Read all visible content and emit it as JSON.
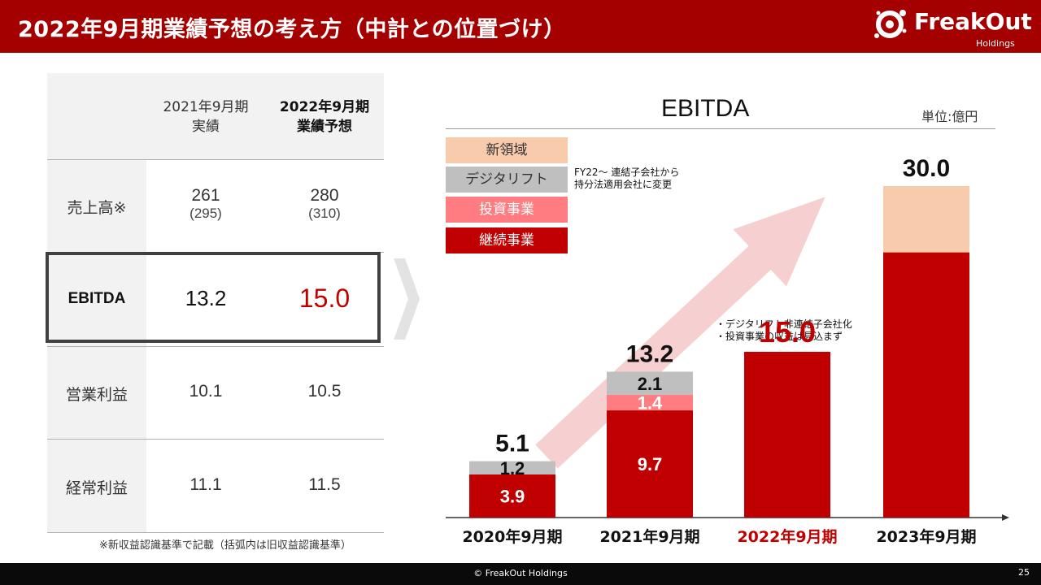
{
  "header": {
    "title": "2022年9月期業績予想の考え方（中計との位置づけ）",
    "logo_name": "FreakOut",
    "logo_sub": "Holdings"
  },
  "table": {
    "columns": [
      {
        "line1": "2021年9月期",
        "line2": "実績"
      },
      {
        "line1": "2022年9月期",
        "line2": "業績予想"
      }
    ],
    "rows": [
      {
        "label": "売上高※",
        "values": [
          "261",
          "280"
        ],
        "sub_values": [
          "(295)",
          "(310)"
        ]
      },
      {
        "label": "EBITDA",
        "values": [
          "13.2",
          "15.0"
        ]
      },
      {
        "label": "営業利益",
        "values": [
          "10.1",
          "10.5"
        ]
      },
      {
        "label": "経常利益",
        "values": [
          "11.1",
          "11.5"
        ]
      }
    ],
    "footnote": "※新収益認識基準で記載（括弧内は旧収益認識基準）"
  },
  "chart_data": {
    "type": "bar",
    "stacked": true,
    "title": "EBITDA",
    "unit": "単位:億円",
    "categories": [
      "2020年9月期",
      "2021年9月期",
      "2022年9月期",
      "2023年9月期"
    ],
    "series": [
      {
        "name": "継続事業",
        "color": "#c00000",
        "values": [
          3.9,
          9.7,
          15.0,
          24.0
        ]
      },
      {
        "name": "投資事業",
        "color": "#ff7c80",
        "values": [
          0,
          1.4,
          0,
          0
        ]
      },
      {
        "name": "デジタリフト",
        "color": "#bfbfbf",
        "values": [
          1.2,
          2.1,
          0,
          0
        ]
      },
      {
        "name": "新領域",
        "color": "#f8cbad",
        "values": [
          0,
          0,
          0,
          6.0
        ]
      }
    ],
    "segment_labels": [
      {
        "cat": 0,
        "series": 0,
        "text": "3.9"
      },
      {
        "cat": 0,
        "series": 2,
        "text": "1.2"
      },
      {
        "cat": 1,
        "series": 0,
        "text": "9.7"
      },
      {
        "cat": 1,
        "series": 1,
        "text": "1.4"
      },
      {
        "cat": 1,
        "series": 2,
        "text": "2.1"
      }
    ],
    "totals": [
      "5.1",
      "13.2",
      "15.0",
      "30.0"
    ],
    "highlight_category": 2,
    "highlight_color": "#c00000",
    "legend_note": [
      "FY22〜 連結子会社から",
      "持分法適用会社に変更"
    ],
    "annotation": [
      "・デジタリフト非連結子会社化",
      "・投資事業の収益は見込まず"
    ],
    "ylim": [
      0,
      30
    ]
  },
  "footer": {
    "copyright": "© FreakOut Holdings",
    "page": "25"
  }
}
